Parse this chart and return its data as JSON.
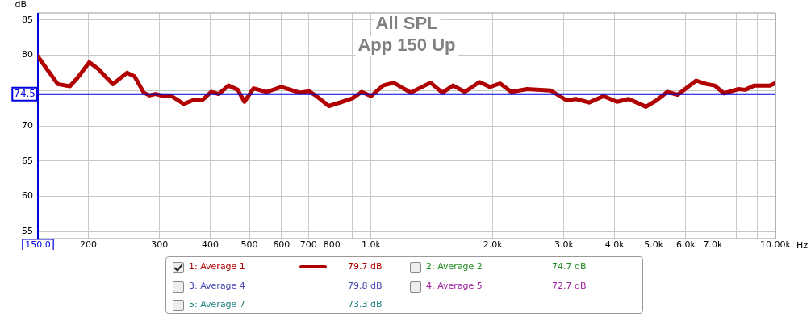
{
  "chart_data": {
    "type": "line",
    "title": "All SPL",
    "subtitle": "App 150 Up",
    "xlabel": "Hz",
    "ylabel": "dB",
    "log": "x",
    "grid": true,
    "legend": "bottom",
    "marker": "none",
    "line_style": "solid",
    "xlim": [
      150,
      10000
    ],
    "ylim": [
      54,
      86
    ],
    "xticks": [
      {
        "value": 150,
        "label": "150.0"
      },
      {
        "value": 200,
        "label": "200"
      },
      {
        "value": 300,
        "label": "300"
      },
      {
        "value": 400,
        "label": "400"
      },
      {
        "value": 500,
        "label": "500"
      },
      {
        "value": 600,
        "label": "600"
      },
      {
        "value": 700,
        "label": "700"
      },
      {
        "value": 800,
        "label": "800"
      },
      {
        "value": 900,
        "label": null
      },
      {
        "value": 1000,
        "label": "1.0k"
      },
      {
        "value": 2000,
        "label": "2.0k"
      },
      {
        "value": 3000,
        "label": "3.0k"
      },
      {
        "value": 4000,
        "label": "4.0k"
      },
      {
        "value": 5000,
        "label": "5.0k"
      },
      {
        "value": 6000,
        "label": "6.0k"
      },
      {
        "value": 7000,
        "label": "7.0k"
      },
      {
        "value": 8000,
        "label": null
      },
      {
        "value": 9000,
        "label": null
      },
      {
        "value": 10000,
        "label": "10.00k"
      }
    ],
    "yticks": [
      55,
      60,
      65,
      70,
      {
        "value": 75,
        "label": null
      },
      80,
      85
    ],
    "x": [
      150,
      158,
      168,
      180,
      188,
      201,
      212,
      220,
      230,
      249,
      260,
      274,
      283,
      293,
      307,
      321,
      344,
      362,
      382,
      402,
      420,
      444,
      468,
      486,
      512,
      552,
      600,
      666,
      702,
      729,
      786,
      848,
      900,
      948,
      1000,
      1070,
      1137,
      1253,
      1403,
      1501,
      1595,
      1706,
      1853,
      1968,
      2084,
      2222,
      2430,
      2782,
      3045,
      3210,
      3460,
      3758,
      4053,
      4336,
      4783,
      5079,
      5398,
      5731,
      6366,
      6761,
      7076,
      7457,
      8101,
      8414,
      8866,
      9700,
      9950
    ],
    "series": [
      {
        "name": "1: Average 1",
        "color": "#b00000",
        "values": [
          79.8,
          78.0,
          75.9,
          75.6,
          76.8,
          79.0,
          78.0,
          77.0,
          75.9,
          77.5,
          77.0,
          74.7,
          74.3,
          74.5,
          74.2,
          74.2,
          73.1,
          73.6,
          73.6,
          74.8,
          74.5,
          75.7,
          75.1,
          73.4,
          75.3,
          74.8,
          75.5,
          74.7,
          74.9,
          74.3,
          72.8,
          73.4,
          73.9,
          74.8,
          74.2,
          75.7,
          76.1,
          74.7,
          76.1,
          74.7,
          75.7,
          74.8,
          76.2,
          75.5,
          76.0,
          74.8,
          75.2,
          75.0,
          73.6,
          73.8,
          73.3,
          74.2,
          73.4,
          73.8,
          72.7,
          73.6,
          74.8,
          74.4,
          76.4,
          75.9,
          75.7,
          74.6,
          75.2,
          75.1,
          75.7,
          75.7,
          76.0
        ]
      }
    ],
    "ref_lines": [
      {
        "axis": "y",
        "value": 74.5,
        "label": "74.5",
        "color": "#0000e0"
      }
    ],
    "annotations": [
      "79.7 dB",
      "2: Average 2",
      "74.7 dB",
      "3: Average 4",
      "79.8 dB",
      "4: Average 5",
      "72.7 dB",
      "5: Average 7",
      "73.3 dB"
    ]
  }
}
